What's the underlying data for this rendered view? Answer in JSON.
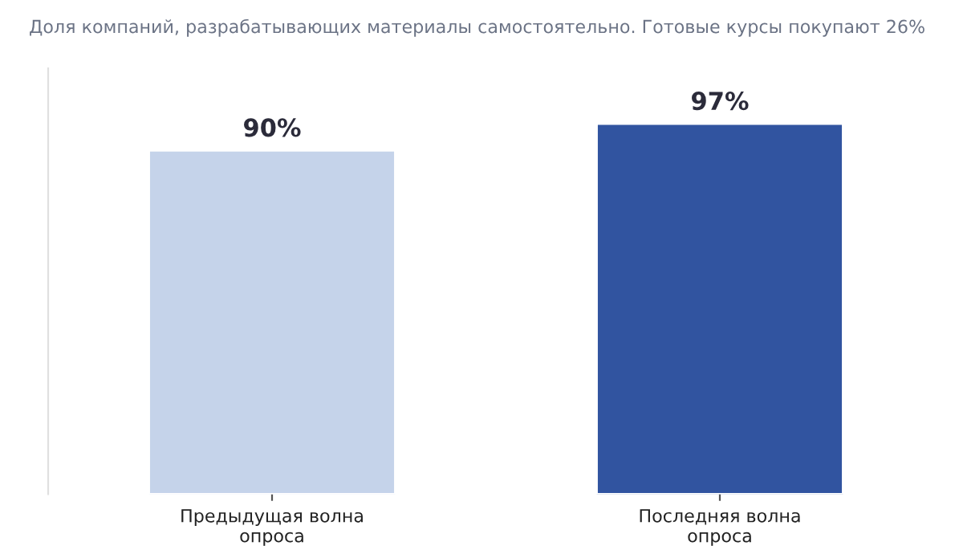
{
  "chart_data": {
    "type": "bar",
    "subtitle": "Доля компаний, разрабатывающих материалы самостоятельно. Готовые курсы покупают 26%",
    "categories": [
      "Предыдущая волна\nопроса",
      "Последняя волна\nопроса"
    ],
    "values": [
      90,
      97
    ],
    "colors": [
      "#c5d3ea",
      "#3154a0"
    ],
    "value_labels": [
      "90%",
      "97%"
    ],
    "grid": false,
    "legend": false
  }
}
